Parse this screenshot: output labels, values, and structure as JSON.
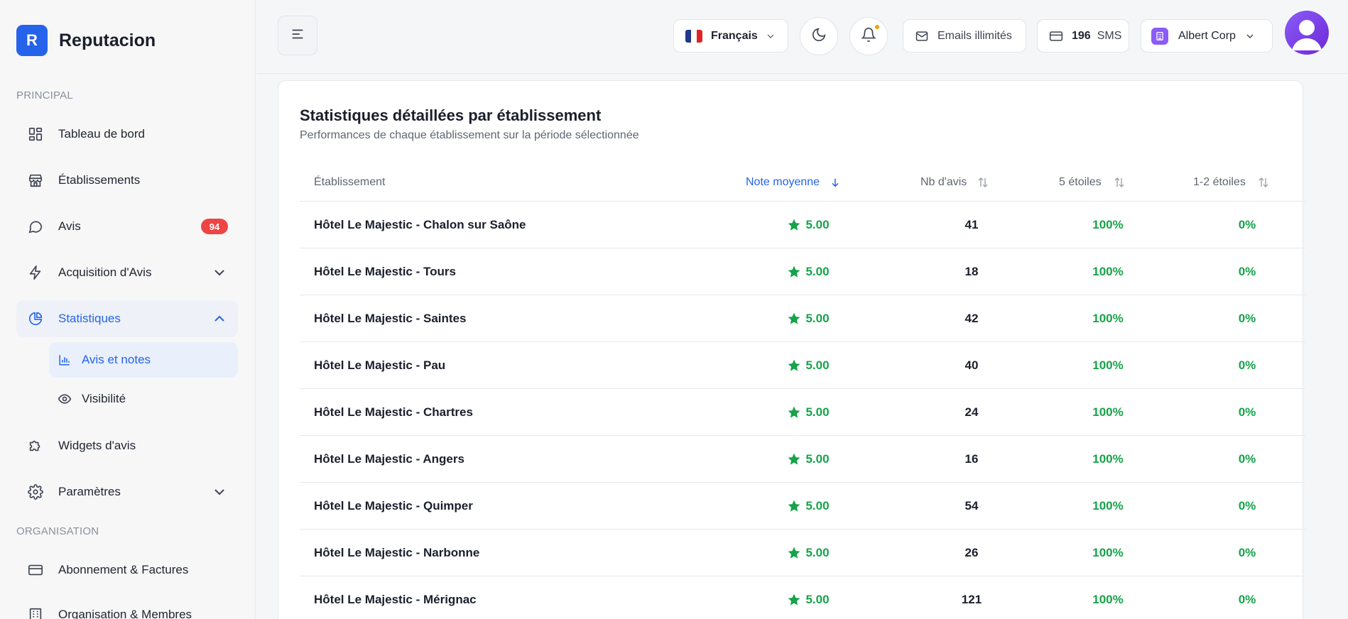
{
  "brand": {
    "logo_letter": "R",
    "name": "Reputacion",
    "color": "#2563eb"
  },
  "sidebar": {
    "section_principal": "PRINCIPAL",
    "section_organisation": "ORGANISATION",
    "items": [
      {
        "label": "Tableau de bord",
        "icon": "dashboard-icon"
      },
      {
        "label": "Établissements",
        "icon": "store-icon"
      },
      {
        "label": "Avis",
        "icon": "message-icon",
        "badge": "94"
      },
      {
        "label": "Acquisition d'Avis",
        "icon": "bolt-icon"
      },
      {
        "label": "Statistiques",
        "icon": "pie-chart-icon"
      },
      {
        "label": "Widgets d'avis",
        "icon": "puzzle-icon"
      },
      {
        "label": "Paramètres",
        "icon": "gear-icon"
      },
      {
        "label": "Abonnement & Factures",
        "icon": "credit-card-icon"
      },
      {
        "label": "Organisation & Membres",
        "icon": "building-icon"
      }
    ],
    "sub_items": [
      {
        "label": "Avis et notes",
        "icon": "bar-chart-icon"
      },
      {
        "label": "Visibilité",
        "icon": "eye-icon"
      }
    ]
  },
  "topbar": {
    "language": "Français",
    "emails": "Emails illimités",
    "sms_count": "196",
    "sms_label": "SMS",
    "org_name": "Albert Corp"
  },
  "card": {
    "title": "Statistiques détaillées par établissement",
    "subtitle": "Performances de chaque établissement sur la période sélectionnée",
    "columns": [
      "Établissement",
      "Note moyenne",
      "Nb d'avis",
      "5 étoiles",
      "1-2 étoiles"
    ],
    "rows": [
      {
        "name": "Hôtel Le Majestic - Chalon sur Saône",
        "note": "5.00",
        "nb": "41",
        "five": "100%",
        "low": "0%"
      },
      {
        "name": "Hôtel Le Majestic - Tours",
        "note": "5.00",
        "nb": "18",
        "five": "100%",
        "low": "0%"
      },
      {
        "name": "Hôtel Le Majestic - Saintes",
        "note": "5.00",
        "nb": "42",
        "five": "100%",
        "low": "0%"
      },
      {
        "name": "Hôtel Le Majestic - Pau",
        "note": "5.00",
        "nb": "40",
        "five": "100%",
        "low": "0%"
      },
      {
        "name": "Hôtel Le Majestic - Chartres",
        "note": "5.00",
        "nb": "24",
        "five": "100%",
        "low": "0%"
      },
      {
        "name": "Hôtel Le Majestic - Angers",
        "note": "5.00",
        "nb": "16",
        "five": "100%",
        "low": "0%"
      },
      {
        "name": "Hôtel Le Majestic - Quimper",
        "note": "5.00",
        "nb": "54",
        "five": "100%",
        "low": "0%"
      },
      {
        "name": "Hôtel Le Majestic - Narbonne",
        "note": "5.00",
        "nb": "26",
        "five": "100%",
        "low": "0%"
      },
      {
        "name": "Hôtel Le Majestic - Mérignac",
        "note": "5.00",
        "nb": "121",
        "five": "100%",
        "low": "0%"
      }
    ]
  },
  "colors": {
    "accent": "#2563eb",
    "success": "#16a34a",
    "badge": "#ef4444",
    "notification": "#f59e0b",
    "org": "#8b5cf6"
  }
}
